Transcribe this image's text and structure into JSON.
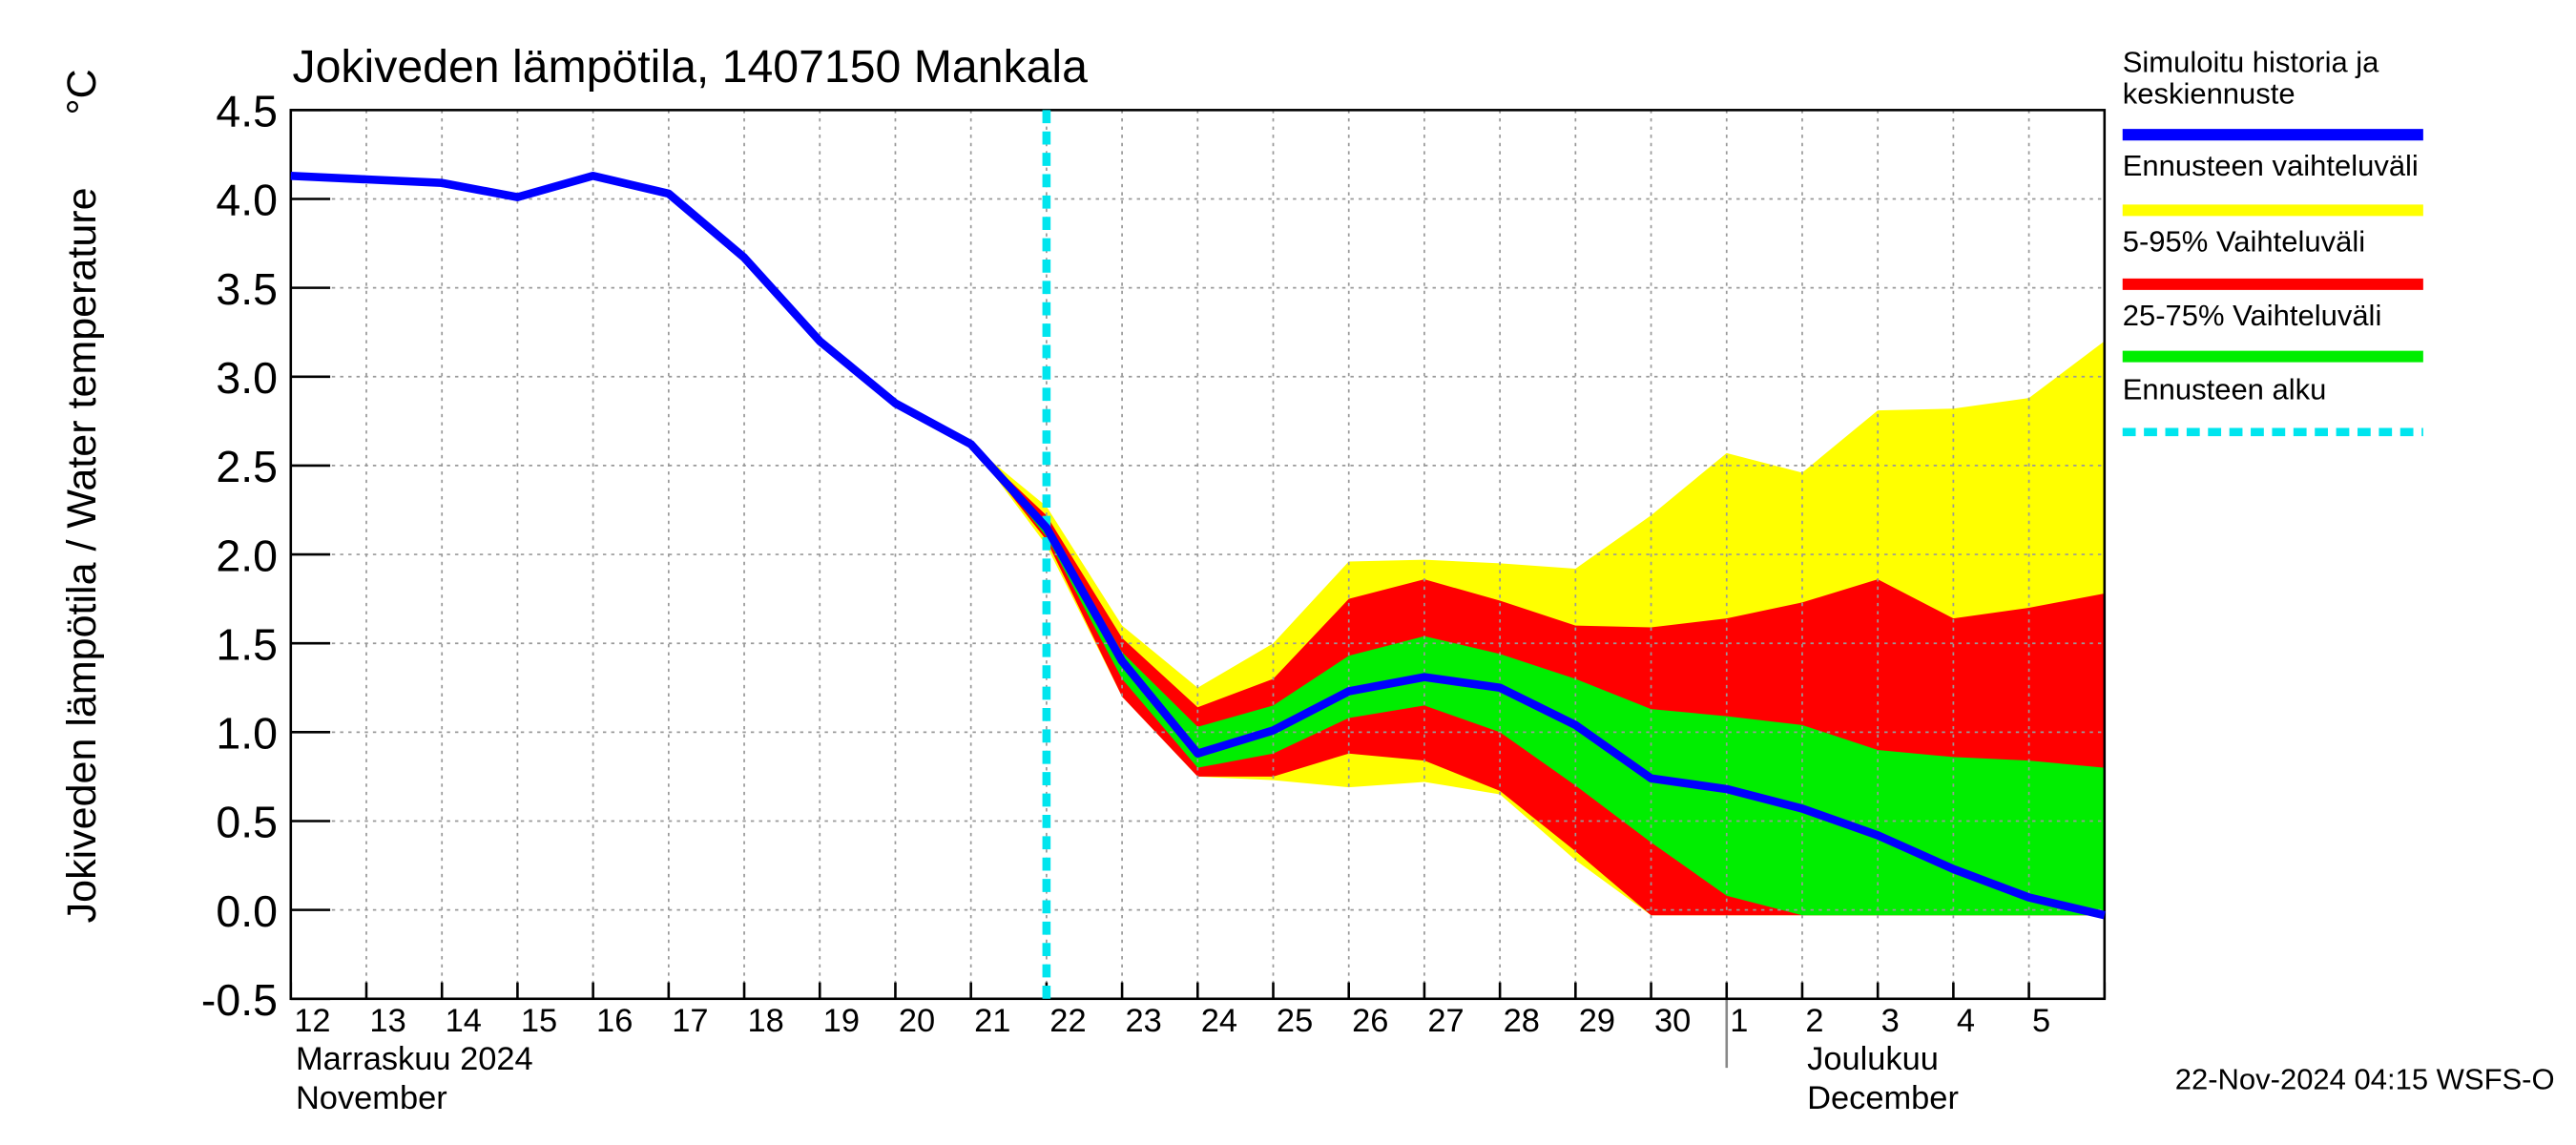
{
  "chart_data": {
    "type": "line",
    "title": "Jokiveden lämpötila, 1407150 Mankala",
    "ylabel": "Jokiveden lämpötila / Water temperature",
    "yunit": "°C",
    "categories": [
      "12",
      "13",
      "14",
      "15",
      "16",
      "17",
      "18",
      "19",
      "20",
      "21",
      "22",
      "23",
      "24",
      "25",
      "26",
      "27",
      "28",
      "29",
      "30",
      "1",
      "2",
      "3",
      "4",
      "5",
      null
    ],
    "month_labels": [
      "Marraskuu 2024",
      "November",
      "Joulukuu",
      "December"
    ],
    "timestamp": "22-Nov-2024 04:15 WSFS-O",
    "ylim": [
      -0.5,
      4.5
    ],
    "yticks": [
      -0.5,
      {
        "value": 0,
        "label": "0.0"
      },
      0.5,
      {
        "value": 1,
        "label": "1.0"
      },
      1.5,
      {
        "value": 2,
        "label": "2.0"
      },
      2.5,
      {
        "value": 3,
        "label": "3.0"
      },
      3.5,
      {
        "value": 4,
        "label": "4.0"
      },
      4.5
    ],
    "grid": true,
    "forecast_start_index": 10,
    "bands": [
      {
        "name": "Ennusteen vaihteluväli",
        "color": "#ffff00",
        "upper": [
          null,
          null,
          null,
          null,
          null,
          null,
          null,
          null,
          null,
          2.62,
          2.27,
          1.6,
          1.25,
          1.5,
          1.96,
          1.97,
          1.95,
          1.92,
          2.22,
          2.57,
          2.46,
          2.81,
          2.82,
          2.88,
          3.2
        ],
        "lower": [
          null,
          null,
          null,
          null,
          null,
          null,
          null,
          null,
          null,
          2.62,
          2.05,
          1.2,
          0.75,
          0.73,
          0.69,
          0.72,
          0.65,
          0.28,
          -0.03,
          -0.03,
          -0.03,
          -0.03,
          -0.03,
          -0.03,
          -0.03
        ]
      },
      {
        "name": "5-95% Vaihteluväli",
        "color": "#ff0000",
        "upper": [
          null,
          null,
          null,
          null,
          null,
          null,
          null,
          null,
          null,
          2.62,
          2.22,
          1.53,
          1.14,
          1.3,
          1.75,
          1.86,
          1.74,
          1.6,
          1.59,
          1.64,
          1.73,
          1.86,
          1.64,
          1.7,
          1.78
        ],
        "lower": [
          null,
          null,
          null,
          null,
          null,
          null,
          null,
          null,
          null,
          2.62,
          2.08,
          1.2,
          0.75,
          0.75,
          0.88,
          0.84,
          0.67,
          0.33,
          -0.03,
          -0.03,
          -0.03,
          -0.03,
          -0.03,
          -0.03,
          -0.03
        ]
      },
      {
        "name": "25-75% Vaihteluväli",
        "color": "#00ee00",
        "upper": [
          null,
          null,
          null,
          null,
          null,
          null,
          null,
          null,
          null,
          2.62,
          2.18,
          1.45,
          1.03,
          1.15,
          1.43,
          1.54,
          1.44,
          1.3,
          1.13,
          1.09,
          1.04,
          0.9,
          0.86,
          0.84,
          0.8
        ],
        "lower": [
          null,
          null,
          null,
          null,
          null,
          null,
          null,
          null,
          null,
          2.62,
          2.1,
          1.3,
          0.8,
          0.88,
          1.08,
          1.15,
          1.0,
          0.7,
          0.38,
          0.08,
          -0.03,
          -0.03,
          -0.03,
          -0.03,
          -0.03
        ]
      }
    ],
    "series": [
      {
        "name": "Simuloitu historia ja\nkeskiennuste",
        "color": "#0000ff",
        "values": [
          4.13,
          4.11,
          4.09,
          4.01,
          4.13,
          4.03,
          3.67,
          3.2,
          2.85,
          2.62,
          2.15,
          1.4,
          0.88,
          1.01,
          1.23,
          1.31,
          1.25,
          1.04,
          0.74,
          0.68,
          0.57,
          0.42,
          0.23,
          0.07,
          -0.03
        ]
      }
    ],
    "forecast_line": {
      "name": "Ennusteen alku",
      "color": "#00e5ee"
    }
  }
}
